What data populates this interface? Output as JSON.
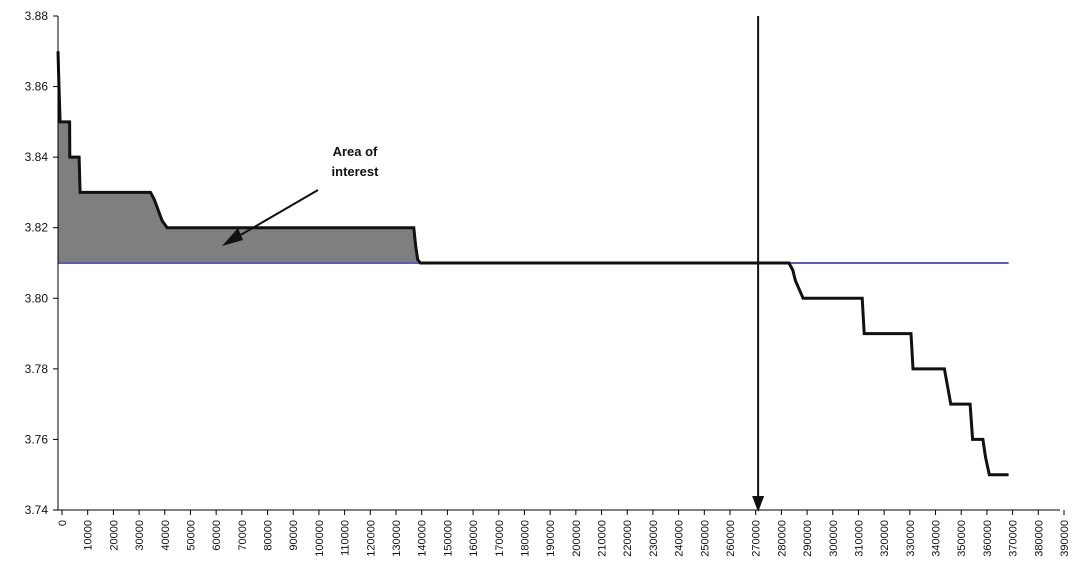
{
  "chart_data": {
    "type": "line",
    "title": "",
    "xlabel": "",
    "ylabel": "",
    "xlim": [
      0,
      390000
    ],
    "ylim": [
      3.74,
      3.88
    ],
    "grid": false,
    "y_ticks": [
      "3.74",
      "3.76",
      "3.78",
      "3.80",
      "3.82",
      "3.84",
      "3.86",
      "3.88"
    ],
    "x_ticks": [
      "0",
      "10000",
      "20000",
      "30000",
      "40000",
      "50000",
      "60000",
      "70000",
      "80000",
      "90000",
      "100000",
      "110000",
      "120000",
      "130000",
      "140000",
      "150000",
      "160000",
      "170000",
      "180000",
      "190000",
      "200000",
      "210000",
      "220000",
      "230000",
      "240000",
      "250000",
      "260000",
      "270000",
      "280000",
      "290000",
      "300000",
      "310000",
      "320000",
      "330000",
      "340000",
      "350000",
      "360000",
      "370000",
      "380000",
      "390000"
    ],
    "series": [
      {
        "values_x": [
          0,
          400,
          800,
          1600,
          2500,
          4500,
          4600,
          5000,
          5600,
          6000,
          8200,
          8600,
          9100,
          12000,
          36000,
          37500,
          39000,
          40500,
          42500,
          138500,
          139200,
          140000,
          141000,
          150000,
          200000,
          260000,
          272000,
          282000,
          284500,
          286000,
          287000,
          290000,
          300000,
          310000,
          313000,
          313800,
          315000,
          330000,
          332000,
          332800,
          345000,
          347500,
          348500,
          355000,
          356000,
          358000,
          360000,
          361000,
          362500,
          370000
        ],
        "values_y": [
          3.87,
          3.86,
          3.85,
          3.85,
          3.85,
          3.85,
          3.84,
          3.84,
          3.84,
          3.84,
          3.84,
          3.83,
          3.83,
          3.83,
          3.83,
          3.828,
          3.825,
          3.822,
          3.82,
          3.82,
          3.815,
          3.811,
          3.81,
          3.81,
          3.81,
          3.81,
          3.81,
          3.81,
          3.81,
          3.808,
          3.805,
          3.8,
          3.8,
          3.8,
          3.8,
          3.79,
          3.79,
          3.79,
          3.79,
          3.78,
          3.78,
          3.77,
          3.77,
          3.77,
          3.76,
          3.76,
          3.76,
          3.755,
          3.75,
          3.75
        ]
      }
    ],
    "reference_line_y": 3.81,
    "vertical_marker_x": 272500,
    "shaded_region": {
      "x_start": 0,
      "x_end": 140000,
      "baseline_y": 3.81
    },
    "annotations": [
      {
        "text_lines": [
          "Area of",
          "interest"
        ]
      }
    ],
    "colors": {
      "series": "#111111",
      "reference": "#5a5fa8",
      "fill": "#7f7f7f",
      "axis": "#000000"
    }
  }
}
